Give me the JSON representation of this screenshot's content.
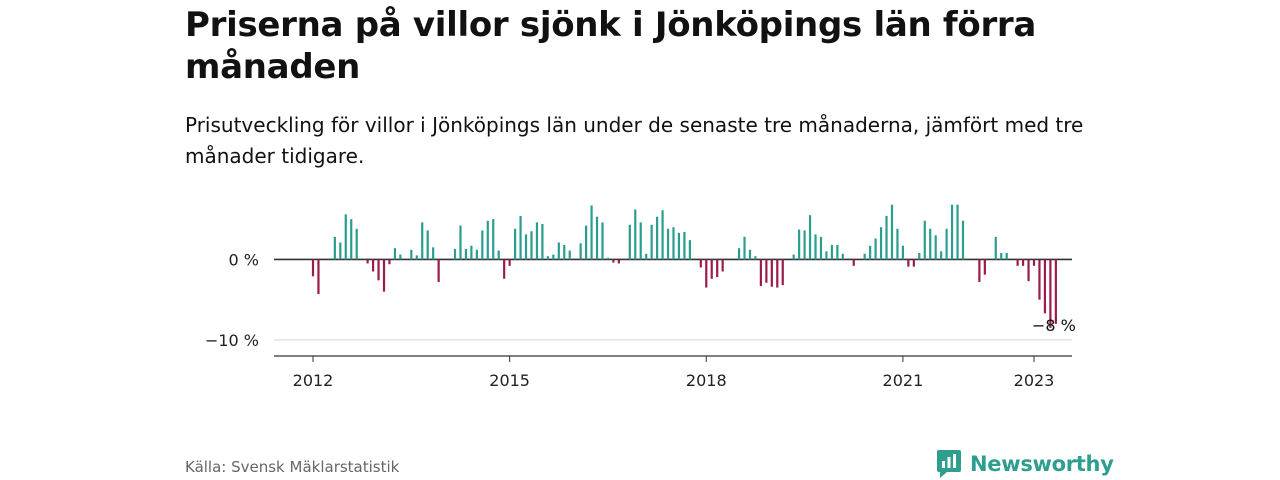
{
  "title": "Priserna på villor sjönk i Jönköpings län förra månaden",
  "subtitle": "Prisutveckling för villor i Jönköpings län under de senaste tre månaderna, jämfört med tre månader tidigare.",
  "source": "Källa: Svensk Mäklarstatistik",
  "brand": "Newsworthy",
  "colors": {
    "positive": "#2a9d8f",
    "negative": "#9b1b4a",
    "brand": "#2e9e8f"
  },
  "chart_data": {
    "type": "bar",
    "x_start": "2012-01",
    "x_ticks": [
      "2012",
      "2015",
      "2018",
      "2021",
      "2023"
    ],
    "y_ticks": [
      "0 %",
      "−10 %"
    ],
    "y_tick_values": [
      0,
      -10
    ],
    "ylim": [
      -12,
      8
    ],
    "annotation": {
      "label": "−8 %",
      "value": -8
    },
    "values": [
      -2.1,
      -4.3,
      0.0,
      0.0,
      2.8,
      2.1,
      5.6,
      5.0,
      3.8,
      0.0,
      -0.5,
      -1.5,
      -2.6,
      -4.0,
      -0.6,
      1.4,
      0.6,
      0.0,
      1.2,
      0.5,
      4.6,
      3.6,
      1.5,
      -2.8,
      0.0,
      0.0,
      1.3,
      4.2,
      1.3,
      1.7,
      1.2,
      3.6,
      4.8,
      5.0,
      1.1,
      -2.4,
      -0.8,
      3.8,
      5.4,
      3.1,
      3.5,
      4.6,
      4.4,
      0.4,
      0.6,
      2.1,
      1.8,
      1.1,
      0.0,
      2.0,
      4.2,
      6.7,
      5.3,
      4.6,
      0.2,
      -0.4,
      -0.5,
      0.0,
      4.3,
      6.2,
      4.6,
      0.7,
      4.3,
      5.3,
      6.1,
      3.8,
      4.0,
      3.3,
      3.4,
      2.4,
      0.0,
      -1.0,
      -3.5,
      -2.4,
      -2.2,
      -1.5,
      0.0,
      0.0,
      1.4,
      2.8,
      1.2,
      0.4,
      -3.3,
      -2.9,
      -3.4,
      -3.5,
      -3.2,
      0.0,
      0.6,
      3.7,
      3.6,
      5.5,
      3.1,
      2.8,
      1.0,
      1.8,
      1.8,
      0.7,
      0.0,
      -0.8,
      0.0,
      0.7,
      1.7,
      2.6,
      4.0,
      5.4,
      6.8,
      3.8,
      1.7,
      -0.9,
      -0.9,
      0.8,
      4.8,
      3.8,
      3.0,
      1.0,
      3.8,
      6.8,
      6.8,
      4.8,
      0.0,
      0.0,
      -2.8,
      -1.9,
      0.0,
      2.8,
      0.8,
      0.8,
      0.0,
      -0.8,
      -0.8,
      -2.7,
      -0.8,
      -5.0,
      -6.7,
      -8.5,
      -8.0
    ]
  }
}
